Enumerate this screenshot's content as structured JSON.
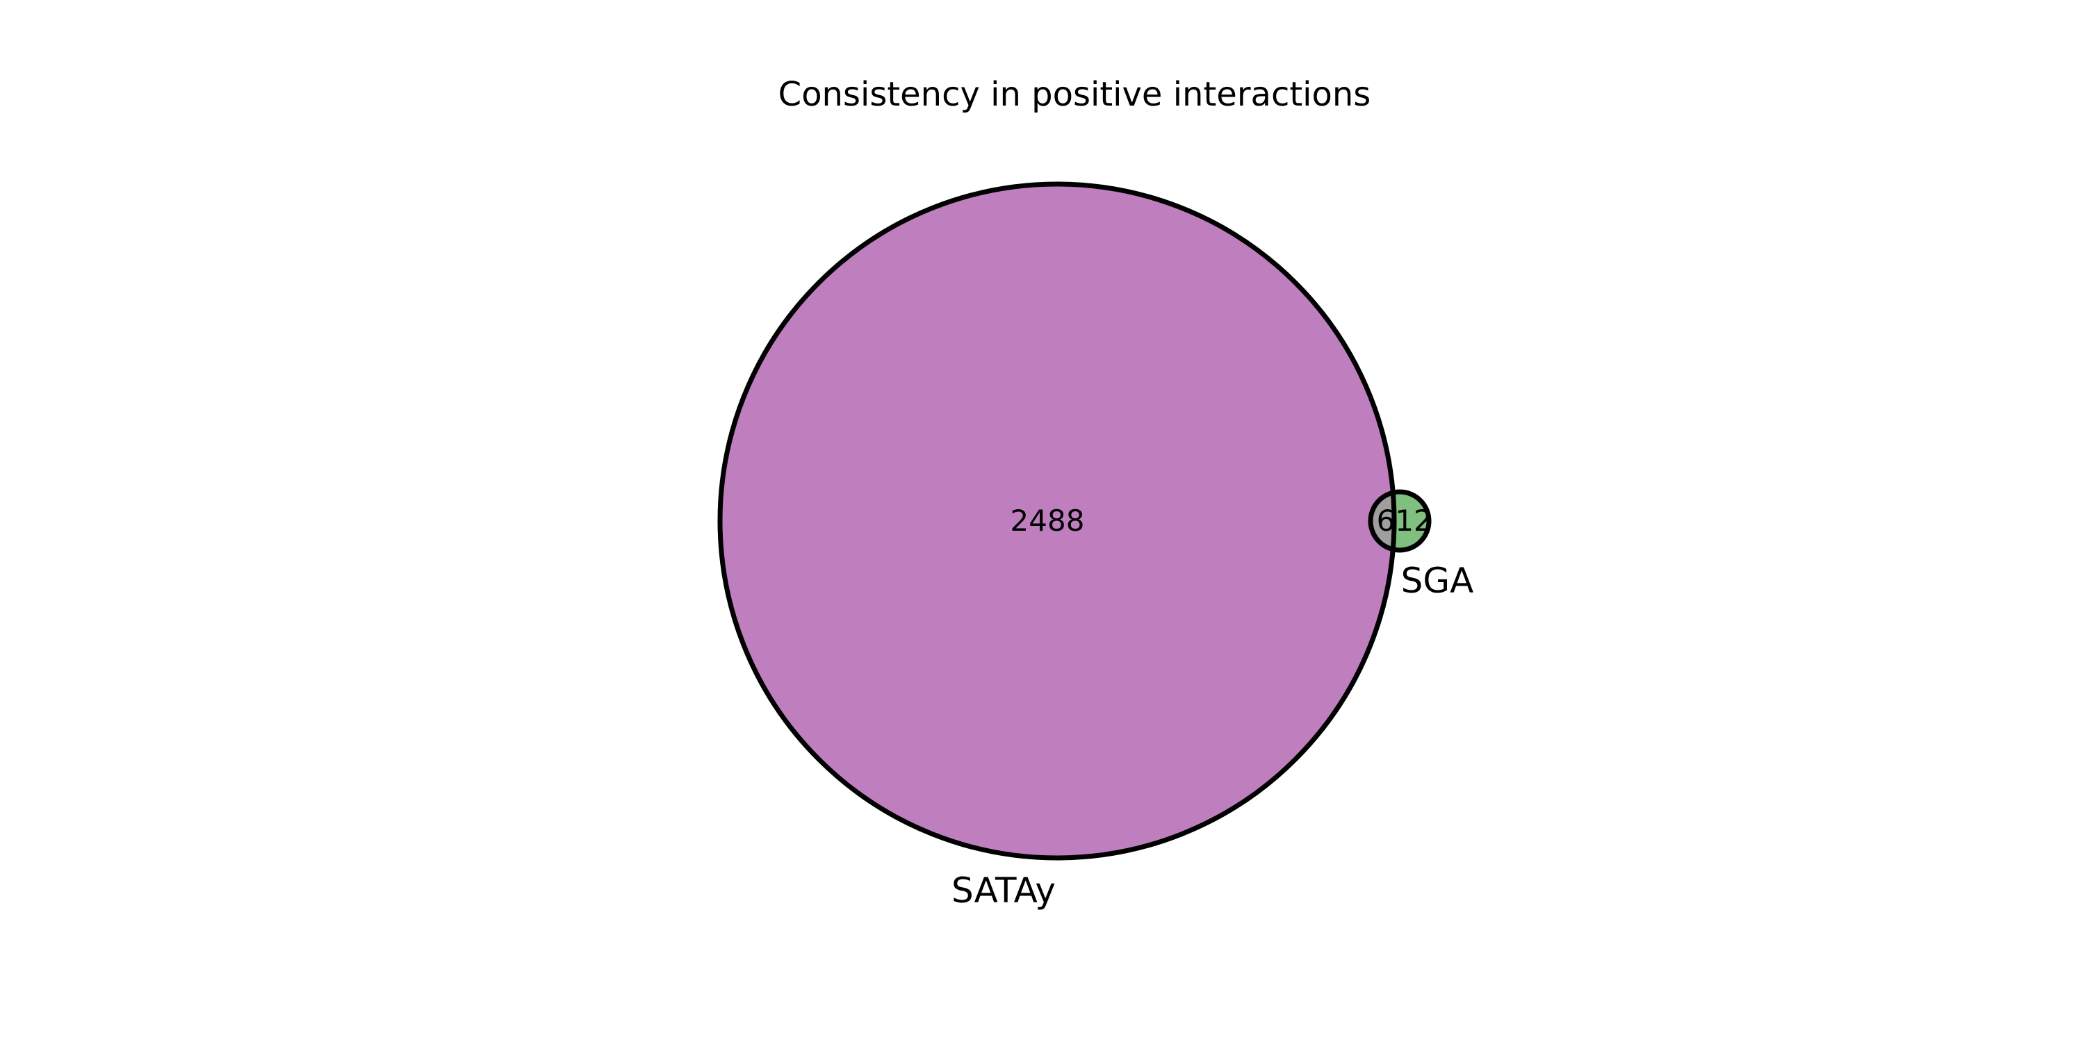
{
  "chart_data": {
    "type": "venn",
    "title": "Consistency in positive interactions",
    "sets": [
      {
        "name": "SATAy",
        "size": 2488,
        "color": "#bf7fbf"
      },
      {
        "name": "SGA",
        "size": 12,
        "color": "#7fbf7f"
      }
    ],
    "regions": [
      {
        "id": "SATAy_only",
        "label": "2488",
        "color": "#bf7fbf"
      },
      {
        "id": "overlap",
        "label": "6",
        "color": "#9f9f9f"
      },
      {
        "id": "SGA_only",
        "label": "12",
        "color": "#7fbf7f"
      }
    ],
    "colors": {
      "satay": "#bf7fbf",
      "sga": "#7fbf7f",
      "overlap": "#9f9f9f",
      "outline": "#000000"
    }
  }
}
